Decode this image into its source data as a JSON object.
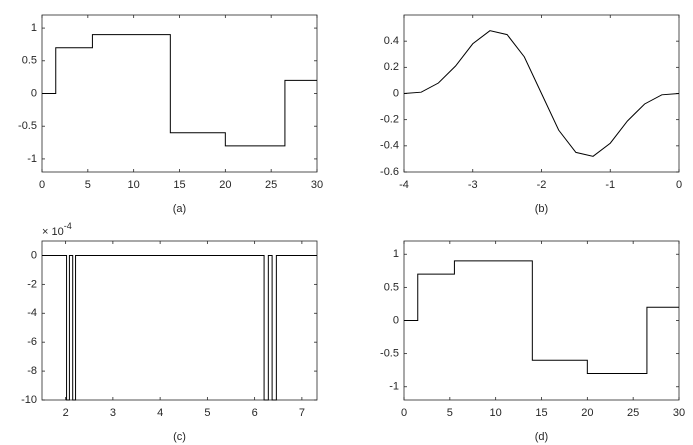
{
  "chart_data": [
    {
      "type": "line",
      "xlabel": "(a)",
      "x": [
        0,
        1.5,
        1.5,
        5.5,
        5.5,
        14,
        14,
        20,
        20,
        26.5,
        26.5,
        30
      ],
      "values": [
        0,
        0,
        0.7,
        0.7,
        0.9,
        0.9,
        -0.6,
        -0.6,
        -0.8,
        -0.8,
        0.2,
        0.2
      ],
      "color": "#000000",
      "xlim": [
        0,
        30
      ],
      "xticks": [
        0,
        5,
        10,
        15,
        20,
        25,
        30
      ],
      "ylim": [
        -1.2,
        1.2
      ],
      "yticks": [
        -1,
        -0.5,
        0,
        0.5,
        1
      ]
    },
    {
      "type": "line",
      "xlabel": "(b)",
      "x": [
        -4,
        -3.75,
        -3.5,
        -3.25,
        -3,
        -2.75,
        -2.5,
        -2.25,
        -2,
        -1.75,
        -1.5,
        -1.25,
        -1,
        -0.75,
        -0.5,
        -0.25,
        0
      ],
      "values": [
        0,
        0.01,
        0.08,
        0.21,
        0.38,
        0.48,
        0.45,
        0.28,
        0,
        -0.28,
        -0.45,
        -0.48,
        -0.38,
        -0.21,
        -0.08,
        -0.01,
        0
      ],
      "color": "#000000",
      "xlim": [
        -4,
        0
      ],
      "xticks": [
        -4,
        -3,
        -2,
        -1,
        0
      ],
      "ylim": [
        -0.6,
        0.6
      ],
      "yticks": [
        -0.6,
        -0.4,
        -0.2,
        0,
        0.2,
        0.4
      ]
    },
    {
      "type": "line",
      "xlabel": "(c)",
      "y_multiplier": {
        "base": "× 10",
        "exponent": "-4"
      },
      "x": [
        1.5,
        2.02,
        2.02,
        2.08,
        2.08,
        2.15,
        2.15,
        2.21,
        2.21,
        6.2,
        6.2,
        6.29,
        6.29,
        6.37,
        6.37,
        6.46,
        6.46,
        7.32
      ],
      "values": [
        0,
        0,
        -10,
        -10,
        0,
        0,
        -10,
        -10,
        0,
        0,
        -10,
        -10,
        0,
        0,
        -10,
        -10,
        0,
        0
      ],
      "color": "#000000",
      "xlim": [
        1.5,
        7.32
      ],
      "xticks": [
        2,
        3,
        4,
        5,
        6,
        7
      ],
      "ylim": [
        -10,
        1
      ],
      "yticks": [
        -10,
        -8,
        -6,
        -4,
        -2,
        0
      ]
    },
    {
      "type": "line",
      "xlabel": "(d)",
      "x": [
        0,
        1.5,
        1.5,
        5.5,
        5.5,
        14,
        14,
        20,
        20,
        26.5,
        26.5,
        30
      ],
      "values": [
        0,
        0,
        0.7,
        0.7,
        0.9,
        0.9,
        -0.6,
        -0.6,
        -0.8,
        -0.8,
        0.2,
        0.2
      ],
      "color": "#000000",
      "xlim": [
        0,
        30
      ],
      "xticks": [
        0,
        5,
        10,
        15,
        20,
        25,
        30
      ],
      "ylim": [
        -1.2,
        1.2
      ],
      "yticks": [
        -1,
        -0.5,
        0,
        0.5,
        1
      ]
    }
  ]
}
